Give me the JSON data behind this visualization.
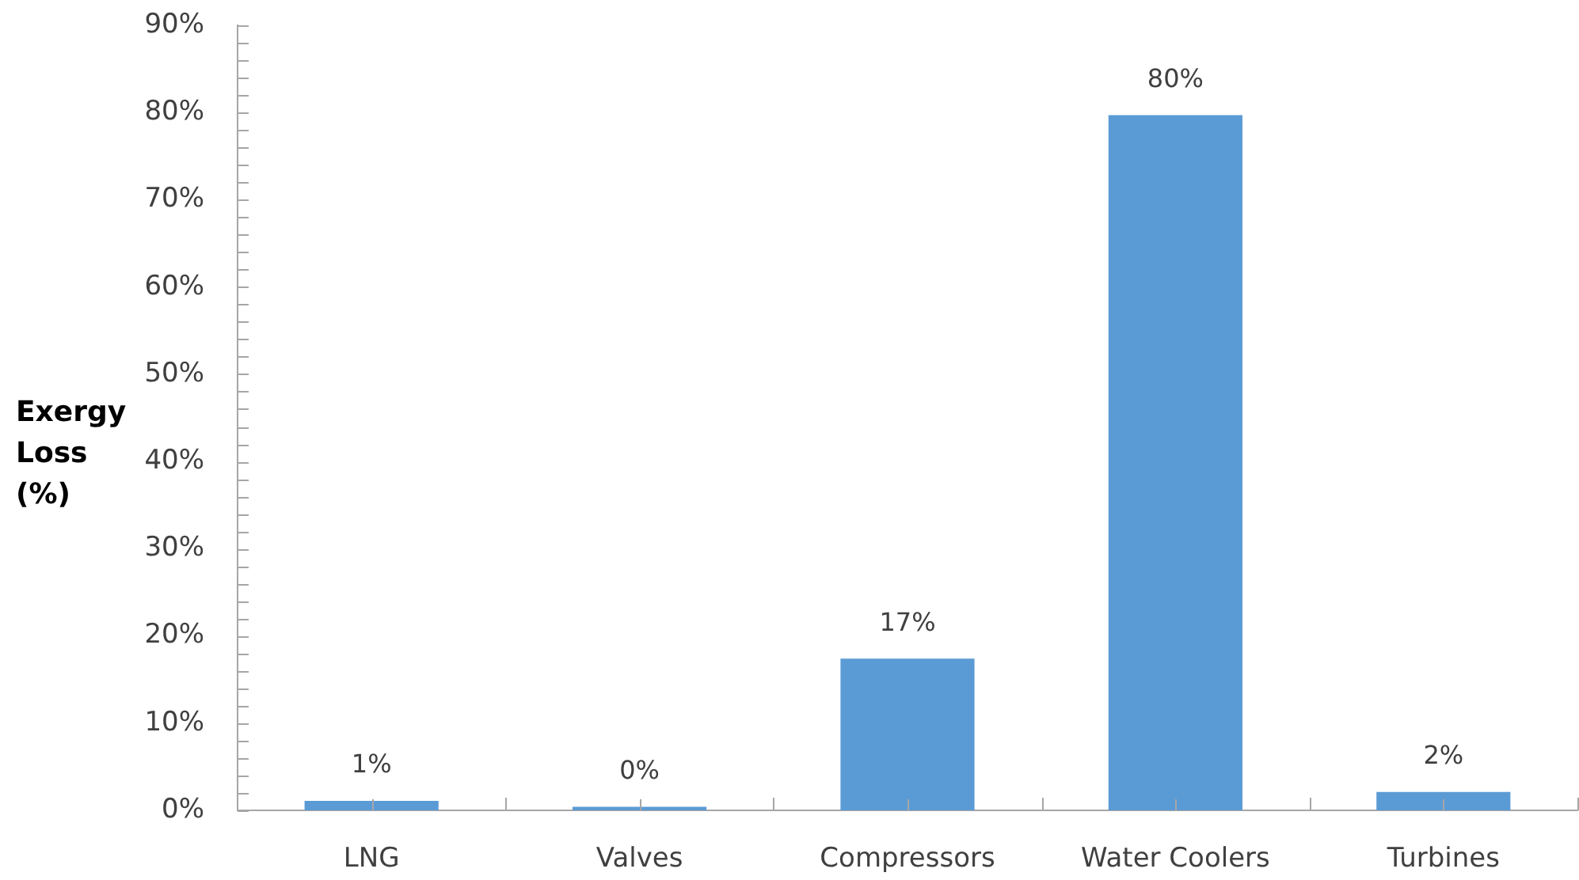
{
  "chart_data": {
    "type": "bar",
    "ylabel": "Exergy Loss (%)",
    "categories": [
      "LNG",
      "Valves",
      "Compressors",
      "Water Coolers",
      "Turbines"
    ],
    "values": [
      1.1,
      0.4,
      17.4,
      79.7,
      2.1
    ],
    "value_labels": [
      "1%",
      "0%",
      "17%",
      "80%",
      "2%"
    ],
    "color": "#5b9bd5",
    "ylim": [
      0,
      90
    ],
    "yticks": [
      {
        "value": 0,
        "label": "0%"
      },
      {
        "value": 2,
        "label": null
      },
      {
        "value": 4,
        "label": null
      },
      {
        "value": 6,
        "label": null
      },
      {
        "value": 8,
        "label": null
      },
      {
        "value": 10,
        "label": "10%"
      },
      {
        "value": 12,
        "label": null
      },
      {
        "value": 14,
        "label": null
      },
      {
        "value": 16,
        "label": null
      },
      {
        "value": 18,
        "label": null
      },
      {
        "value": 20,
        "label": "20%"
      },
      {
        "value": 22,
        "label": null
      },
      {
        "value": 24,
        "label": null
      },
      {
        "value": 26,
        "label": null
      },
      {
        "value": 28,
        "label": null
      },
      {
        "value": 30,
        "label": "30%"
      },
      {
        "value": 32,
        "label": null
      },
      {
        "value": 34,
        "label": null
      },
      {
        "value": 36,
        "label": null
      },
      {
        "value": 38,
        "label": null
      },
      {
        "value": 40,
        "label": "40%"
      },
      {
        "value": 42,
        "label": null
      },
      {
        "value": 44,
        "label": null
      },
      {
        "value": 46,
        "label": null
      },
      {
        "value": 48,
        "label": null
      },
      {
        "value": 50,
        "label": "50%"
      },
      {
        "value": 52,
        "label": null
      },
      {
        "value": 54,
        "label": null
      },
      {
        "value": 56,
        "label": null
      },
      {
        "value": 58,
        "label": null
      },
      {
        "value": 60,
        "label": "60%"
      },
      {
        "value": 62,
        "label": null
      },
      {
        "value": 64,
        "label": null
      },
      {
        "value": 66,
        "label": null
      },
      {
        "value": 68,
        "label": null
      },
      {
        "value": 70,
        "label": "70%"
      },
      {
        "value": 72,
        "label": null
      },
      {
        "value": 74,
        "label": null
      },
      {
        "value": 76,
        "label": null
      },
      {
        "value": 78,
        "label": null
      },
      {
        "value": 80,
        "label": "80%"
      },
      {
        "value": 82,
        "label": null
      },
      {
        "value": 84,
        "label": null
      },
      {
        "value": 86,
        "label": null
      },
      {
        "value": 88,
        "label": null
      },
      {
        "value": 90,
        "label": "90%"
      }
    ]
  }
}
